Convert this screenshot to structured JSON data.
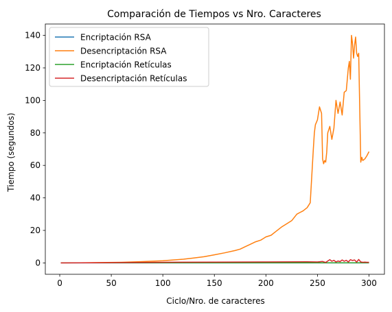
{
  "chart_data": {
    "type": "line",
    "title": "Comparación de Tiempos vs Nro. Caracteres",
    "xlabel": "Ciclo/Nro. de caracteres",
    "ylabel": "Tiempo (segundos)",
    "xlim": [
      -14,
      315
    ],
    "ylim": [
      -7,
      147
    ],
    "xticks": [
      0,
      50,
      100,
      150,
      200,
      250,
      300
    ],
    "yticks": [
      0,
      20,
      40,
      60,
      80,
      100,
      120,
      140
    ],
    "grid": false,
    "legend_position": "top-left",
    "series": [
      {
        "name": "Encriptación RSA",
        "color": "#1f77b4",
        "x": [
          1,
          300
        ],
        "y": [
          0.0,
          0.0
        ]
      },
      {
        "name": "Desencriptación RSA",
        "color": "#ff7f0e",
        "x": [
          1,
          20,
          40,
          60,
          80,
          100,
          110,
          120,
          130,
          140,
          150,
          160,
          170,
          175,
          180,
          185,
          190,
          195,
          200,
          205,
          210,
          215,
          220,
          225,
          230,
          233,
          236,
          240,
          243,
          246,
          247,
          248,
          250,
          252,
          254,
          255,
          256,
          257,
          258,
          259,
          260,
          262,
          264,
          266,
          268,
          270,
          272,
          274,
          276,
          278,
          280,
          281,
          282,
          283,
          284,
          285,
          286,
          287,
          288,
          289,
          290,
          291,
          292,
          293,
          294,
          296,
          298,
          300
        ],
        "y": [
          0.0,
          0.1,
          0.2,
          0.4,
          0.8,
          1.3,
          1.8,
          2.3,
          3.0,
          3.8,
          5.0,
          6.2,
          7.6,
          8.5,
          10.0,
          11.5,
          13.0,
          14.0,
          16.0,
          17.0,
          19.5,
          22.0,
          24.0,
          26.0,
          30.0,
          31.0,
          32.0,
          34.0,
          37.0,
          70.0,
          80.0,
          85.0,
          88.0,
          96.0,
          92.0,
          64.0,
          61.0,
          63.0,
          62.0,
          68.0,
          80.0,
          84.0,
          76.0,
          83.0,
          100.0,
          92.0,
          99.0,
          91.0,
          105.0,
          106.0,
          120.0,
          124.0,
          113.0,
          140.0,
          135.0,
          126.0,
          134.0,
          139.0,
          129.0,
          127.0,
          129.0,
          95.0,
          62.0,
          65.0,
          63.0,
          64.0,
          66.0,
          68.5
        ]
      },
      {
        "name": "Encriptación Retículas",
        "color": "#2ca02c",
        "x": [
          1,
          300
        ],
        "y": [
          0.1,
          0.1
        ]
      },
      {
        "name": "Desencriptación Retículas",
        "color": "#d62728",
        "x": [
          1,
          30,
          60,
          100,
          150,
          200,
          240,
          250,
          255,
          258,
          260,
          262,
          264,
          266,
          268,
          270,
          272,
          274,
          276,
          278,
          280,
          282,
          284,
          286,
          288,
          290,
          292,
          294,
          296,
          298,
          300
        ],
        "y": [
          0.0,
          0.05,
          0.2,
          0.4,
          0.5,
          0.6,
          0.7,
          0.6,
          0.9,
          0.3,
          1.2,
          2.0,
          1.0,
          1.6,
          0.6,
          1.2,
          0.8,
          1.8,
          1.0,
          1.6,
          0.6,
          2.0,
          1.5,
          1.8,
          0.5,
          2.1,
          0.6,
          0.4,
          0.5,
          0.4,
          0.4
        ]
      }
    ]
  }
}
